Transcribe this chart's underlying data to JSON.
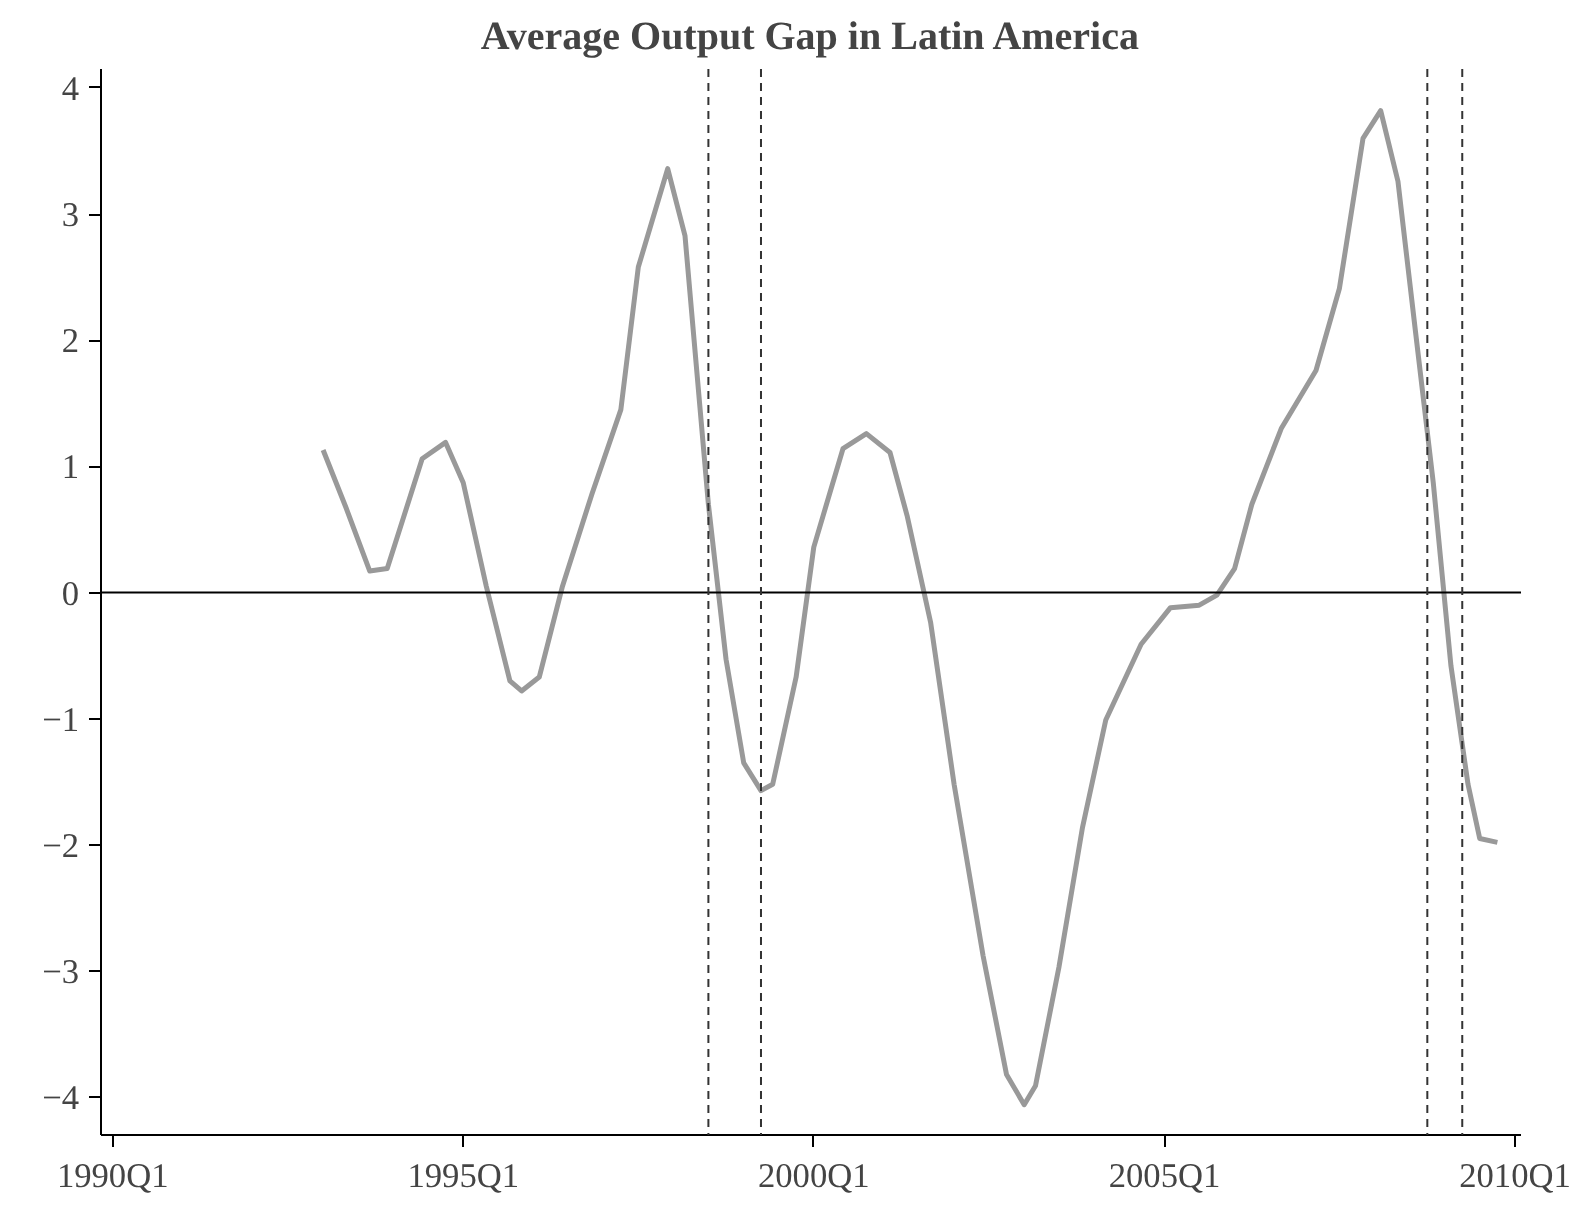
{
  "chart_data": {
    "type": "line",
    "title": "Average Output Gap in Latin America",
    "x": [
      "1993-01",
      "1993-05",
      "1993-09",
      "1993-12",
      "1994-06",
      "1994-10",
      "1995-01",
      "1995-05",
      "1995-09",
      "1995-11",
      "1996-02",
      "1996-06",
      "1996-11",
      "1997-04",
      "1997-07",
      "1997-12",
      "1998-03",
      "1998-07",
      "1998-10",
      "1999-01",
      "1999-04",
      "1999-06",
      "1999-10",
      "2000-01",
      "2000-06",
      "2000-10",
      "2001-02",
      "2001-05",
      "2001-09",
      "2002-01",
      "2002-06",
      "2002-10",
      "2003-01",
      "2003-03",
      "2003-07",
      "2003-11",
      "2004-03",
      "2004-09",
      "2005-02",
      "2005-07",
      "2005-10",
      "2006-01",
      "2006-04",
      "2006-09",
      "2007-03",
      "2007-07",
      "2007-11",
      "2008-02",
      "2008-05",
      "2008-08",
      "2008-11",
      "2009-02",
      "2009-05",
      "2009-07",
      "2009-10"
    ],
    "series": [
      {
        "color": "#999999",
        "values": [
          1.13,
          0.67,
          0.17,
          0.19,
          1.06,
          1.19,
          0.87,
          0.05,
          -0.7,
          -0.78,
          -0.67,
          0.05,
          0.78,
          1.45,
          2.58,
          3.36,
          2.83,
          0.7,
          -0.53,
          -1.35,
          -1.57,
          -1.52,
          -0.67,
          0.36,
          1.14,
          1.26,
          1.11,
          0.61,
          -0.24,
          -1.52,
          -2.88,
          -3.82,
          -4.06,
          -3.91,
          -2.97,
          -1.86,
          -1.01,
          -0.41,
          -0.12,
          -0.1,
          -0.02,
          0.19,
          0.7,
          1.3,
          1.76,
          2.41,
          3.6,
          3.82,
          3.26,
          2.06,
          0.87,
          -0.58,
          -1.52,
          -1.95,
          -1.98
        ]
      }
    ],
    "xlim": [
      "1989-11",
      "2010-02"
    ],
    "ylim": [
      -4.3,
      4.15
    ],
    "xticks": [
      {
        "value": "1990-01",
        "label": "1990Q1"
      },
      {
        "value": "1995-01",
        "label": "1995Q1"
      },
      {
        "value": "2000-01",
        "label": "2000Q1"
      },
      {
        "value": "2005-01",
        "label": "2005Q1"
      },
      {
        "value": "2010-01",
        "label": "2010Q1"
      }
    ],
    "yticks": [
      {
        "value": -4,
        "label": "−4"
      },
      {
        "value": -3,
        "label": "−3"
      },
      {
        "value": -2,
        "label": "−2"
      },
      {
        "value": -1,
        "label": "−1"
      },
      0,
      1,
      2,
      3,
      4
    ],
    "ref_lines": [
      {
        "axis": "y",
        "value": 0,
        "color": "#000000",
        "line_style": "solid"
      },
      {
        "axis": "x",
        "value": "1998-07",
        "color": "#333333",
        "line_style": "dashed"
      },
      {
        "axis": "x",
        "value": "1999-04",
        "color": "#333333",
        "line_style": "dashed"
      },
      {
        "axis": "x",
        "value": "2008-10",
        "color": "#333333",
        "line_style": "dashed"
      },
      {
        "axis": "x",
        "value": "2009-04",
        "color": "#333333",
        "line_style": "dashed"
      }
    ],
    "grid": false,
    "marker": "none",
    "line_style": "solid"
  }
}
